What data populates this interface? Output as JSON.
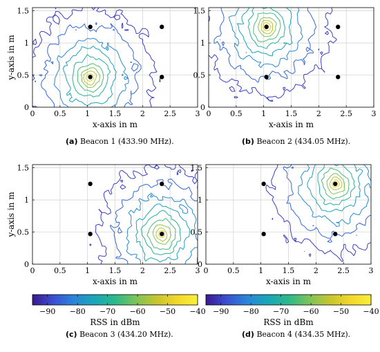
{
  "captions": [
    {
      "tag": "(a)",
      "text": "Beacon 1 (433.90 MHz)."
    },
    {
      "tag": "(b)",
      "text": "Beacon 2 (434.05 MHz)."
    },
    {
      "tag": "(c)",
      "text": "Beacon 3 (434.20 MHz)."
    },
    {
      "tag": "(d)",
      "text": "Beacon 4 (434.35 MHz)."
    }
  ],
  "chart_data": [
    {
      "type": "contour",
      "panel": "a",
      "xlabel": "x-axis in m",
      "ylabel": "y-axis in m",
      "xlim": [
        0,
        3
      ],
      "ylim": [
        0,
        1.55
      ],
      "xticks": [
        0,
        0.5,
        1,
        1.5,
        2,
        2.5,
        3
      ],
      "yticks": [
        0,
        0.5,
        1,
        1.5
      ],
      "grid": true,
      "active_beacon": {
        "x": 1.05,
        "y": 0.47
      },
      "beacons": [
        {
          "x": 1.05,
          "y": 1.25
        },
        {
          "x": 2.35,
          "y": 1.25
        },
        {
          "x": 1.05,
          "y": 0.47
        },
        {
          "x": 2.35,
          "y": 0.47
        }
      ]
    },
    {
      "type": "contour",
      "panel": "b",
      "xlabel": "x-axis in m",
      "xlim": [
        0,
        3
      ],
      "ylim": [
        0,
        1.55
      ],
      "xticks": [
        0,
        0.5,
        1,
        1.5,
        2,
        2.5,
        3
      ],
      "yticks": [
        0,
        0.5,
        1,
        1.5
      ],
      "grid": true,
      "active_beacon": {
        "x": 1.05,
        "y": 1.25
      },
      "beacons": [
        {
          "x": 1.05,
          "y": 1.25
        },
        {
          "x": 2.35,
          "y": 1.25
        },
        {
          "x": 1.05,
          "y": 0.47
        },
        {
          "x": 2.35,
          "y": 0.47
        }
      ]
    },
    {
      "type": "contour",
      "panel": "c",
      "xlabel": "x-axis in m",
      "ylabel": "y-axis in m",
      "xlim": [
        0,
        3
      ],
      "ylim": [
        0,
        1.55
      ],
      "xticks": [
        0,
        0.5,
        1,
        1.5,
        2,
        2.5,
        3
      ],
      "yticks": [
        0,
        0.5,
        1,
        1.5
      ],
      "grid": true,
      "active_beacon": {
        "x": 2.35,
        "y": 0.47
      },
      "beacons": [
        {
          "x": 1.05,
          "y": 1.25
        },
        {
          "x": 2.35,
          "y": 1.25
        },
        {
          "x": 1.05,
          "y": 0.47
        },
        {
          "x": 2.35,
          "y": 0.47
        }
      ]
    },
    {
      "type": "contour",
      "panel": "d",
      "xlabel": "x-axis in m",
      "xlim": [
        0,
        3
      ],
      "ylim": [
        0,
        1.55
      ],
      "xticks": [
        0,
        0.5,
        1,
        1.5,
        2,
        2.5,
        3
      ],
      "yticks": [
        0,
        0.5,
        1,
        1.5
      ],
      "grid": true,
      "active_beacon": {
        "x": 2.35,
        "y": 1.25
      },
      "beacons": [
        {
          "x": 1.05,
          "y": 1.25
        },
        {
          "x": 2.35,
          "y": 1.25
        },
        {
          "x": 1.05,
          "y": 0.47
        },
        {
          "x": 2.35,
          "y": 0.47
        }
      ]
    }
  ],
  "colorbar": {
    "label": "RSS in dBm",
    "range": [
      -95,
      -40
    ],
    "ticks": [
      -90,
      -80,
      -70,
      -60,
      -50,
      -40
    ],
    "colormap": [
      "#3a1a8f",
      "#3b4fd1",
      "#2a85d8",
      "#1aa6b8",
      "#2cb88a",
      "#7cc35a",
      "#c6c430",
      "#f2d829",
      "#f9ef3a"
    ]
  },
  "contour_levels": [
    -90,
    -85,
    -80,
    -75,
    -70,
    -65,
    -60,
    -55,
    -50,
    -45,
    -40
  ]
}
